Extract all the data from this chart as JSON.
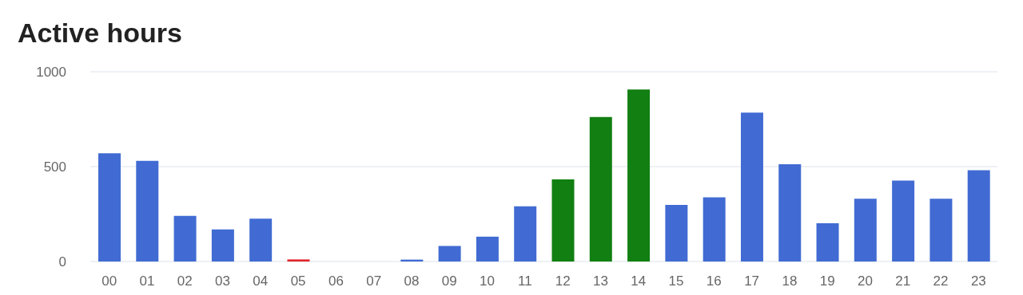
{
  "chart_data": {
    "type": "bar",
    "title": "Active hours",
    "categories": [
      "00",
      "01",
      "02",
      "03",
      "04",
      "05",
      "06",
      "07",
      "08",
      "09",
      "10",
      "11",
      "12",
      "13",
      "14",
      "15",
      "16",
      "17",
      "18",
      "19",
      "20",
      "21",
      "22",
      "23"
    ],
    "values": [
      570,
      530,
      241,
      169,
      226,
      11,
      0,
      0,
      10,
      82,
      131,
      291,
      433,
      762,
      907,
      298,
      338,
      785,
      513,
      202,
      331,
      426,
      331,
      481
    ],
    "colors": [
      "#416bd3",
      "#416bd3",
      "#416bd3",
      "#416bd3",
      "#416bd3",
      "#e0262b",
      "#416bd3",
      "#416bd3",
      "#416bd3",
      "#416bd3",
      "#416bd3",
      "#416bd3",
      "#117f11",
      "#117f11",
      "#117f11",
      "#416bd3",
      "#416bd3",
      "#416bd3",
      "#416bd3",
      "#416bd3",
      "#416bd3",
      "#416bd3",
      "#416bd3",
      "#416bd3"
    ],
    "ylim": [
      0,
      1000
    ],
    "yticks": [
      0,
      500,
      1000
    ],
    "grid": "y"
  }
}
